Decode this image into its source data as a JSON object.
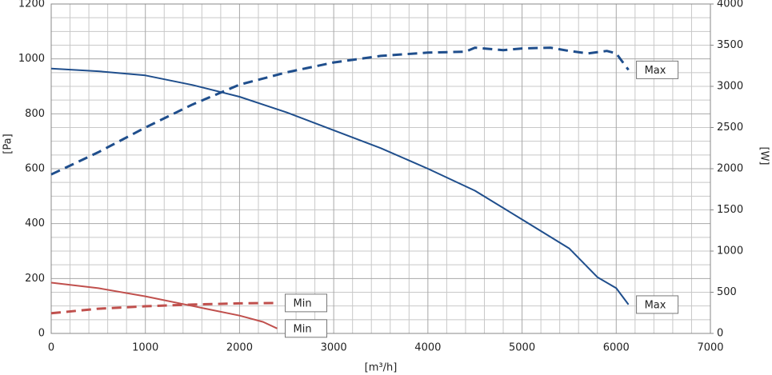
{
  "chart_data": {
    "type": "line",
    "x_label": "[m³/h]",
    "y_label": "[Pa]",
    "y2_label": "[W]",
    "xlim": [
      0,
      7000
    ],
    "xticks": [
      0,
      1000,
      2000,
      3000,
      4000,
      5000,
      6000,
      7000
    ],
    "ylim": [
      0,
      1200
    ],
    "yticks": [
      0,
      200,
      400,
      600,
      800,
      1000,
      1200
    ],
    "y2lim": [
      0,
      4000
    ],
    "y2ticks": [
      0,
      500,
      1000,
      1500,
      2000,
      2500,
      3000,
      3500,
      4000
    ],
    "grid": true,
    "series": [
      {
        "name": "Max",
        "color": "#1f4e8c",
        "line_style": "solid",
        "axis": "y",
        "x": [
          0,
          500,
          1000,
          1500,
          2000,
          2500,
          3000,
          3500,
          4000,
          4500,
          5000,
          5500,
          5800,
          6000,
          6130
        ],
        "values": [
          965,
          955,
          940,
          905,
          862,
          805,
          740,
          675,
          600,
          520,
          415,
          310,
          205,
          165,
          105
        ]
      },
      {
        "name": "Max",
        "color": "#1f4e8c",
        "line_style": "dashed",
        "axis": "y2",
        "x": [
          0,
          500,
          1000,
          1500,
          2000,
          2500,
          3000,
          3500,
          4000,
          4400,
          4500,
          4800,
          5000,
          5300,
          5500,
          5700,
          5900,
          6000,
          6130
        ],
        "values": [
          1930,
          2200,
          2500,
          2780,
          3020,
          3170,
          3290,
          3370,
          3410,
          3420,
          3470,
          3440,
          3460,
          3470,
          3430,
          3400,
          3430,
          3400,
          3200
        ]
      },
      {
        "name": "Min",
        "color": "#c0504d",
        "line_style": "solid",
        "axis": "y",
        "x": [
          0,
          500,
          1000,
          1500,
          2000,
          2250,
          2400
        ],
        "values": [
          185,
          165,
          135,
          100,
          65,
          42,
          18
        ]
      },
      {
        "name": "Min",
        "color": "#c0504d",
        "line_style": "dashed",
        "axis": "y2",
        "x": [
          0,
          500,
          1000,
          1500,
          2000,
          2400
        ],
        "values": [
          245,
          300,
          330,
          350,
          365,
          370
        ]
      }
    ]
  }
}
